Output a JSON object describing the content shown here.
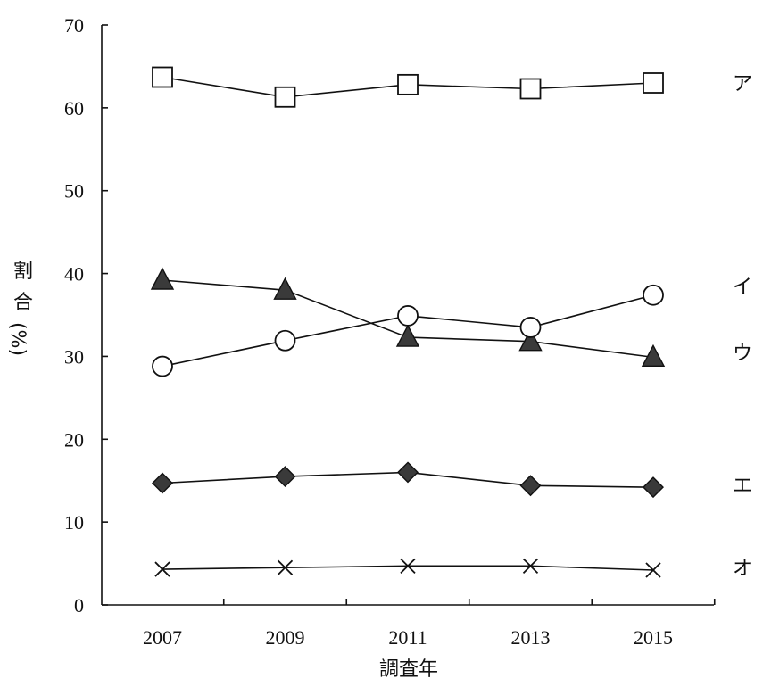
{
  "chart_data": {
    "type": "line",
    "x": [
      2007,
      2009,
      2011,
      2013,
      2015
    ],
    "x_tick_labels": [
      "2007",
      "2009",
      "2011",
      "2013",
      "2015"
    ],
    "xlabel": "調査年",
    "ylabel_parts": [
      "割",
      "合",
      "(%)"
    ],
    "ylim": [
      0,
      70
    ],
    "y_ticks": [
      0,
      10,
      20,
      30,
      40,
      50,
      60,
      70
    ],
    "y_tick_labels": [
      "0",
      "10",
      "20",
      "30",
      "40",
      "50",
      "60",
      "70"
    ],
    "grid": false,
    "series": [
      {
        "name": "ア",
        "marker": "open-square",
        "values": [
          63.7,
          61.3,
          62.8,
          62.3,
          63.0
        ]
      },
      {
        "name": "イ",
        "marker": "filled-triangle",
        "values": [
          39.2,
          38.0,
          32.3,
          31.8,
          29.9
        ]
      },
      {
        "name": "ウ",
        "marker": "open-circle",
        "values": [
          28.8,
          31.9,
          34.9,
          33.5,
          37.4
        ]
      },
      {
        "name": "エ",
        "marker": "filled-diamond",
        "values": [
          14.7,
          15.5,
          16.0,
          14.4,
          14.2
        ]
      },
      {
        "name": "オ",
        "marker": "cross",
        "values": [
          4.3,
          4.5,
          4.7,
          4.7,
          4.2
        ]
      }
    ],
    "series_label_y": [
      63.0,
      38.5,
      30.5,
      14.5,
      4.5
    ]
  }
}
